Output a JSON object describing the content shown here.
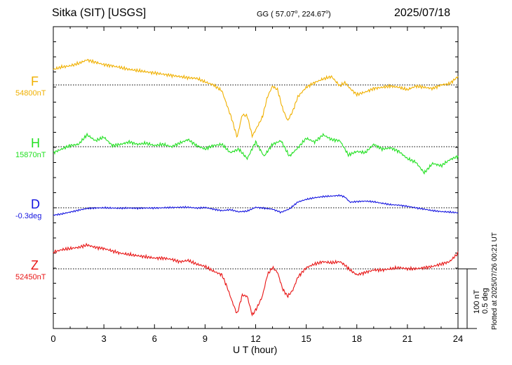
{
  "header": {
    "station": "Sitka (SIT)  [USGS]",
    "coord_prefix": "GG ( 57.07",
    "coord_mid": ", 224.67",
    "coord_suffix": ")",
    "date": "2025/07/18"
  },
  "footer": {
    "plotted_note": "Plotted at 2025/07/26 00:21 UT"
  },
  "chart_data": {
    "type": "line",
    "xlabel": "U T (hour)",
    "xlim": [
      0,
      24
    ],
    "x_ticks": [
      "0",
      "3",
      "6",
      "9",
      "12",
      "15",
      "18",
      "21",
      "24"
    ],
    "grid": "dotted baselines per component",
    "scale_labels": [
      "100 nT",
      "0.5 deg"
    ],
    "series": [
      {
        "name": "F",
        "baseline_label": "54800nT",
        "color": "#F0B000",
        "unit": "nT",
        "x": [
          0,
          0.5,
          1,
          1.5,
          2,
          2.5,
          3,
          3.5,
          4,
          4.5,
          5,
          5.5,
          6,
          6.5,
          7,
          7.5,
          8,
          8.5,
          9,
          9.5,
          10,
          10.3,
          10.6,
          10.9,
          11.2,
          11.5,
          11.8,
          12.1,
          12.4,
          12.7,
          13,
          13.3,
          13.6,
          13.9,
          14.2,
          14.5,
          15,
          15.5,
          16,
          16.5,
          17,
          17.3,
          17.6,
          18,
          18.5,
          19,
          19.5,
          20,
          20.5,
          21,
          21.5,
          22,
          22.5,
          23,
          23.5,
          24
        ],
        "y": [
          26,
          30,
          32,
          36,
          42,
          38,
          34,
          32,
          29,
          26,
          24,
          22,
          20,
          18,
          16,
          14,
          12,
          11,
          5,
          0,
          -10,
          -34,
          -58,
          -88,
          -50,
          -52,
          -86,
          -70,
          -54,
          -20,
          -2,
          -8,
          -40,
          -60,
          -44,
          -20,
          -4,
          4,
          10,
          14,
          -2,
          4,
          -6,
          -16,
          -12,
          -6,
          -4,
          -2,
          -4,
          -8,
          -2,
          -4,
          -6,
          0,
          2,
          14
        ]
      },
      {
        "name": "H",
        "baseline_label": "15870nT",
        "color": "#22E022",
        "unit": "nT",
        "x": [
          0,
          0.5,
          1,
          1.5,
          2,
          2.5,
          3,
          3.5,
          4,
          4.5,
          5,
          5.5,
          6,
          6.5,
          7,
          7.5,
          8,
          8.5,
          9,
          9.5,
          10,
          10.5,
          11,
          11.5,
          12,
          12.5,
          13,
          13.5,
          14,
          14.5,
          15,
          15.5,
          16,
          16.5,
          17,
          17.5,
          18,
          18.5,
          19,
          19.5,
          20,
          20.5,
          21,
          21.5,
          22,
          22.5,
          23,
          23.5,
          24
        ],
        "y": [
          -10,
          -4,
          2,
          4,
          20,
          10,
          16,
          2,
          4,
          8,
          4,
          6,
          2,
          4,
          0,
          6,
          12,
          2,
          -4,
          2,
          4,
          -10,
          -4,
          -20,
          8,
          -16,
          4,
          10,
          -16,
          -2,
          14,
          8,
          20,
          12,
          10,
          -14,
          -8,
          -10,
          4,
          -4,
          -2,
          -8,
          -20,
          -26,
          -44,
          -28,
          -32,
          -22,
          -16
        ]
      },
      {
        "name": "D",
        "baseline_label": "-0.3deg",
        "color": "#1414E0",
        "unit": "deg",
        "x": [
          0,
          0.5,
          1,
          1.5,
          2,
          2.5,
          3,
          3.5,
          4,
          4.5,
          5,
          5.5,
          6,
          6.5,
          7,
          7.5,
          8,
          8.5,
          9,
          9.5,
          10,
          10.5,
          11,
          11.5,
          12,
          12.5,
          13,
          13.5,
          14,
          14.5,
          15,
          15.5,
          16,
          16.5,
          17,
          17.3,
          17.6,
          18,
          18.5,
          19,
          19.5,
          20,
          20.5,
          21,
          21.5,
          22,
          22.5,
          23,
          23.5,
          24
        ],
        "y": [
          -0.062,
          -0.052,
          -0.036,
          -0.02,
          -0.006,
          -0.002,
          0.0,
          -0.002,
          -0.004,
          -0.002,
          -0.004,
          -0.002,
          -0.002,
          0.0,
          0.002,
          0.004,
          0.004,
          -0.002,
          0.002,
          -0.012,
          -0.024,
          -0.016,
          -0.034,
          -0.028,
          0.004,
          -0.004,
          -0.012,
          -0.038,
          -0.01,
          0.048,
          0.07,
          0.084,
          0.094,
          0.098,
          0.104,
          0.09,
          0.046,
          0.052,
          0.056,
          0.05,
          0.038,
          0.026,
          0.022,
          0.012,
          0.0,
          -0.012,
          -0.024,
          -0.032,
          -0.036,
          -0.042
        ]
      },
      {
        "name": "Z",
        "baseline_label": "52450nT",
        "color": "#E81414",
        "unit": "nT",
        "x": [
          0,
          0.5,
          1,
          1.5,
          2,
          2.5,
          3,
          3.5,
          4,
          4.5,
          5,
          5.5,
          6,
          6.5,
          7,
          7.5,
          8,
          8.5,
          9,
          9.5,
          10,
          10.3,
          10.6,
          10.9,
          11.2,
          11.5,
          11.8,
          12.1,
          12.4,
          12.7,
          13,
          13.3,
          13.6,
          13.9,
          14.2,
          14.5,
          15,
          15.5,
          16,
          16.5,
          17,
          17.3,
          17.6,
          18,
          18.5,
          19,
          19.5,
          20,
          20.5,
          21,
          21.5,
          22,
          22.5,
          23,
          23.5,
          24
        ],
        "y": [
          28,
          32,
          34,
          36,
          40,
          36,
          34,
          30,
          26,
          24,
          22,
          20,
          18,
          18,
          16,
          12,
          14,
          8,
          4,
          -4,
          -10,
          -30,
          -54,
          -76,
          -44,
          -46,
          -78,
          -64,
          -46,
          -10,
          2,
          -6,
          -34,
          -46,
          -36,
          -14,
          2,
          8,
          12,
          10,
          12,
          6,
          -2,
          -10,
          -6,
          -2,
          -2,
          0,
          2,
          0,
          0,
          2,
          4,
          8,
          12,
          26
        ]
      }
    ]
  }
}
